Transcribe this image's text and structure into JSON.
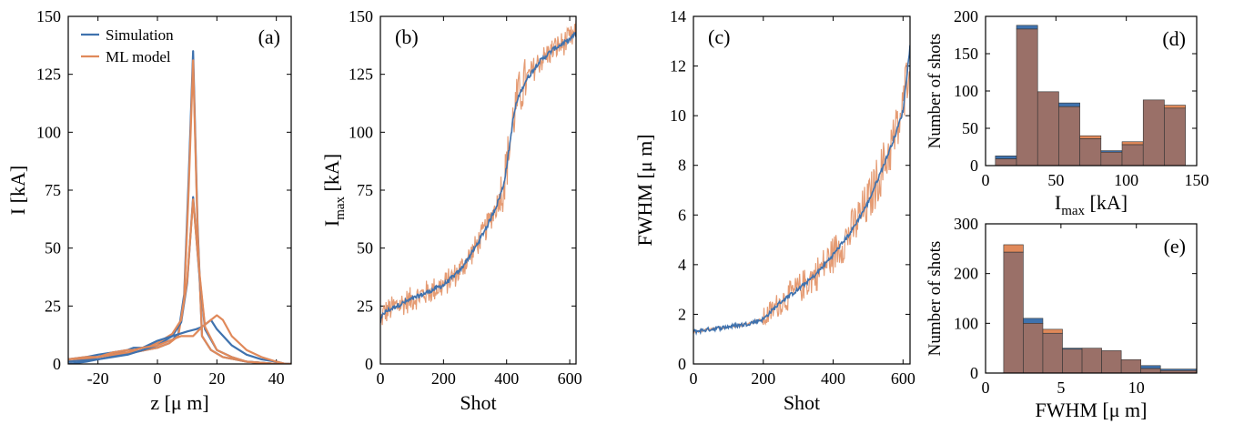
{
  "colors": {
    "simulation": "#3f72ae",
    "ml": "#e0895a",
    "overlap": "#9a7068",
    "axis": "#000000"
  },
  "legend": {
    "simulation": "Simulation",
    "ml": "ML model"
  },
  "chart_data": [
    {
      "id": "a",
      "panel_label": "(a)",
      "type": "line",
      "xlabel": "z [μ m]",
      "ylabel": "I [kA]",
      "xlim": [
        -30,
        45
      ],
      "ylim": [
        0,
        150
      ],
      "xticks": [
        "-20",
        "0",
        "20",
        "40"
      ],
      "yticks": [
        "0",
        "25",
        "50",
        "75",
        "100",
        "125",
        "150"
      ],
      "legend_placement": "top-left",
      "series": [
        {
          "name": "Simulation",
          "role": "sim",
          "x": [
            -30,
            -24,
            -20,
            -16,
            -12,
            -8,
            -4,
            0,
            4,
            7,
            9,
            10.5,
            12,
            13.5,
            15,
            18,
            22,
            30,
            40,
            45
          ],
          "y": [
            0,
            1,
            2,
            3,
            4,
            5,
            6,
            7,
            9,
            13,
            30,
            80,
            135,
            60,
            12,
            6,
            3,
            1,
            0,
            0
          ]
        },
        {
          "name": "ML model",
          "role": "ml",
          "x": [
            -30,
            -24,
            -20,
            -16,
            -12,
            -8,
            -4,
            0,
            4,
            7,
            9,
            10.5,
            12,
            13.5,
            15,
            18,
            22,
            30,
            40,
            45
          ],
          "y": [
            1,
            2,
            3,
            4,
            5,
            5,
            6,
            7,
            9,
            12,
            28,
            75,
            131,
            58,
            12,
            6,
            3,
            1,
            0,
            0
          ]
        },
        {
          "name": "",
          "role": "sim",
          "x": [
            -30,
            -20,
            -10,
            -5,
            0,
            5,
            8,
            10,
            12,
            14,
            16,
            20,
            25,
            30,
            40,
            45
          ],
          "y": [
            1,
            2,
            4,
            6,
            8,
            12,
            18,
            35,
            72,
            40,
            15,
            6,
            3,
            1,
            0,
            0
          ]
        },
        {
          "name": "",
          "role": "ml",
          "x": [
            -30,
            -20,
            -10,
            -5,
            0,
            5,
            8,
            10,
            12,
            14,
            16,
            20,
            25,
            30,
            40,
            45
          ],
          "y": [
            2,
            3,
            5,
            7,
            9,
            13,
            19,
            36,
            71,
            41,
            16,
            6,
            3,
            1,
            0,
            0
          ]
        },
        {
          "name": "",
          "role": "sim",
          "x": [
            -30,
            -24,
            -20,
            -15,
            -10,
            -8,
            -5,
            0,
            5,
            10,
            13,
            15,
            17,
            18,
            20,
            25,
            30,
            35,
            40,
            43,
            45
          ],
          "y": [
            2,
            3,
            4,
            5,
            6,
            7,
            7,
            10,
            12,
            14,
            15,
            16,
            18,
            19,
            15,
            8,
            4,
            2,
            1,
            0,
            0
          ]
        },
        {
          "name": "",
          "role": "ml",
          "x": [
            -30,
            -24,
            -20,
            -15,
            -10,
            -8,
            -5,
            0,
            4,
            8,
            12,
            15,
            18,
            20,
            22,
            25,
            30,
            35,
            40,
            43,
            45
          ],
          "y": [
            2,
            3,
            3,
            5,
            6,
            6,
            7,
            8,
            10,
            12,
            12,
            16,
            19,
            21,
            19,
            12,
            6,
            3,
            1,
            0,
            0
          ]
        }
      ]
    },
    {
      "id": "b",
      "panel_label": "(b)",
      "type": "line",
      "xlabel": "Shot",
      "ylabel": "I",
      "ylabel_sub": "max",
      "ylabel_unit": " [kA]",
      "xlim": [
        0,
        620
      ],
      "ylim": [
        0,
        150
      ],
      "xticks": [
        "0",
        "200",
        "400",
        "600"
      ],
      "yticks": [
        "0",
        "25",
        "50",
        "75",
        "100",
        "125",
        "150"
      ],
      "trend": {
        "x": [
          0,
          10,
          50,
          100,
          150,
          200,
          250,
          300,
          340,
          370,
          390,
          400,
          410,
          420,
          430,
          440,
          460,
          500,
          550,
          600,
          620
        ],
        "y": [
          18,
          22,
          25,
          28,
          31,
          34,
          40,
          50,
          60,
          69,
          77,
          85,
          95,
          105,
          112,
          116,
          122,
          130,
          136,
          140,
          143
        ]
      },
      "noise_sim": 1.0,
      "noise_ml": 5.5,
      "noise_scale_region": [
        380,
        460,
        2.0
      ]
    },
    {
      "id": "c",
      "panel_label": "(c)",
      "type": "line",
      "xlabel": "Shot",
      "ylabel": "FWHM [μ m]",
      "xlim": [
        0,
        620
      ],
      "ylim": [
        0,
        14
      ],
      "xticks": [
        "0",
        "200",
        "400",
        "600"
      ],
      "yticks": [
        "0",
        "2",
        "4",
        "6",
        "8",
        "10",
        "12",
        "14"
      ],
      "trend": {
        "x": [
          0,
          50,
          100,
          150,
          200,
          250,
          300,
          350,
          400,
          450,
          500,
          550,
          580,
          600,
          620
        ],
        "y": [
          1.3,
          1.4,
          1.5,
          1.6,
          1.8,
          2.5,
          3.0,
          3.6,
          4.4,
          5.3,
          6.5,
          8.2,
          9.3,
          10.2,
          12.8
        ]
      },
      "noise_sim": 0.08,
      "noise_ml": 0.9,
      "noise_start": 200
    },
    {
      "id": "d",
      "panel_label": "(d)",
      "type": "bar",
      "xlabel": "I",
      "xlabel_sub": "max",
      "xlabel_unit": " [kA]",
      "ylabel": "Number of shots",
      "xlim": [
        0,
        150
      ],
      "ylim": [
        0,
        200
      ],
      "xticks": [
        "0",
        "50",
        "100",
        "150"
      ],
      "yticks": [
        "0",
        "50",
        "100",
        "150",
        "200"
      ],
      "bin_edges": [
        7,
        22,
        37,
        52,
        67,
        82,
        97,
        112,
        127,
        142
      ],
      "series": [
        {
          "name": "Simulation",
          "values": [
            13,
            188,
            99,
            84,
            36,
            20,
            28,
            88,
            77
          ]
        },
        {
          "name": "ML model",
          "values": [
            9,
            183,
            99,
            79,
            40,
            18,
            32,
            88,
            81
          ]
        }
      ]
    },
    {
      "id": "e",
      "panel_label": "(e)",
      "type": "bar",
      "xlabel": "FWHM [μ m]",
      "ylabel": "Number of shots",
      "xlim": [
        0,
        14
      ],
      "ylim": [
        0,
        300
      ],
      "xticks": [
        "0",
        "5",
        "10"
      ],
      "yticks": [
        "0",
        "100",
        "200",
        "300"
      ],
      "bin_edges": [
        1.2,
        2.5,
        3.8,
        5.1,
        6.4,
        7.7,
        9.0,
        10.3,
        11.6,
        14.0
      ],
      "series": [
        {
          "name": "Simulation",
          "values": [
            243,
            110,
            80,
            50,
            50,
            45,
            27,
            15,
            8
          ]
        },
        {
          "name": "ML model",
          "values": [
            258,
            100,
            88,
            48,
            50,
            45,
            27,
            9,
            5
          ]
        }
      ]
    }
  ]
}
